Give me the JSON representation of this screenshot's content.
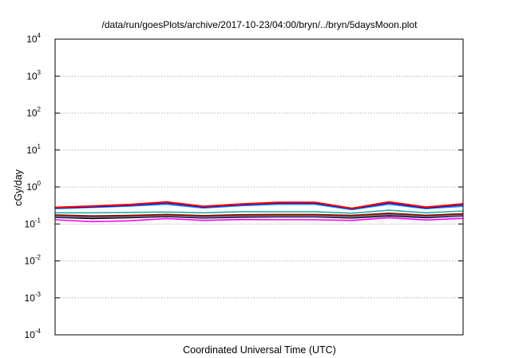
{
  "chart_data": {
    "type": "line",
    "title": "/data/run/goesPlots/archive/2017-10-23/04:00/bryn/../bryn/5daysMoon.plot",
    "xlabel": "Coordinated Universal Time (UTC)",
    "ylabel": "cGy/day",
    "yscale": "log",
    "ylim": [
      0.0001,
      10000
    ],
    "y_ticks": [
      {
        "base": "10",
        "exp": "4",
        "value": 10000
      },
      {
        "base": "10",
        "exp": "3",
        "value": 1000
      },
      {
        "base": "10",
        "exp": "2",
        "value": 100
      },
      {
        "base": "10",
        "exp": "1",
        "value": 10
      },
      {
        "base": "10",
        "exp": "0",
        "value": 1
      },
      {
        "base": "10",
        "exp": "-1",
        "value": 0.1
      },
      {
        "base": "10",
        "exp": "-2",
        "value": 0.01
      },
      {
        "base": "10",
        "exp": "-3",
        "value": 0.001
      },
      {
        "base": "10",
        "exp": "-4",
        "value": 0.0001
      }
    ],
    "grid": "horizontal-dotted",
    "legend": "none",
    "x": [
      0,
      1,
      2,
      3,
      4,
      5,
      6,
      7,
      8,
      9,
      10,
      11
    ],
    "series": [
      {
        "color": "#ff00ff",
        "values": [
          0.13,
          0.115,
          0.122,
          0.14,
          0.125,
          0.132,
          0.13,
          0.13,
          0.125,
          0.148,
          0.128,
          0.142
        ]
      },
      {
        "color": "#000000",
        "values": [
          0.15,
          0.14,
          0.148,
          0.158,
          0.145,
          0.152,
          0.155,
          0.155,
          0.145,
          0.165,
          0.148,
          0.165
        ]
      },
      {
        "color": "#5555cc",
        "values": [
          0.155,
          0.15,
          0.155,
          0.165,
          0.15,
          0.16,
          0.16,
          0.16,
          0.152,
          0.175,
          0.155,
          0.17
        ]
      },
      {
        "color": "#8b7030",
        "values": [
          0.165,
          0.158,
          0.162,
          0.172,
          0.16,
          0.168,
          0.17,
          0.17,
          0.16,
          0.185,
          0.165,
          0.18
        ]
      },
      {
        "color": "#8b0000",
        "values": [
          0.175,
          0.165,
          0.17,
          0.18,
          0.168,
          0.178,
          0.18,
          0.18,
          0.17,
          0.195,
          0.172,
          0.19
        ]
      },
      {
        "color": "#20b2aa",
        "values": [
          0.2,
          0.2,
          0.205,
          0.21,
          0.2,
          0.215,
          0.215,
          0.215,
          0.195,
          0.235,
          0.2,
          0.225
        ]
      },
      {
        "color": "#1e90ff",
        "values": [
          0.26,
          0.28,
          0.305,
          0.34,
          0.27,
          0.31,
          0.34,
          0.34,
          0.245,
          0.34,
          0.26,
          0.3
        ]
      },
      {
        "color": "#0000cc",
        "values": [
          0.27,
          0.29,
          0.32,
          0.37,
          0.285,
          0.33,
          0.365,
          0.365,
          0.255,
          0.37,
          0.27,
          0.33
        ]
      },
      {
        "color": "#ff0000",
        "values": [
          0.28,
          0.305,
          0.335,
          0.395,
          0.3,
          0.345,
          0.385,
          0.385,
          0.265,
          0.395,
          0.285,
          0.35
        ]
      }
    ]
  }
}
